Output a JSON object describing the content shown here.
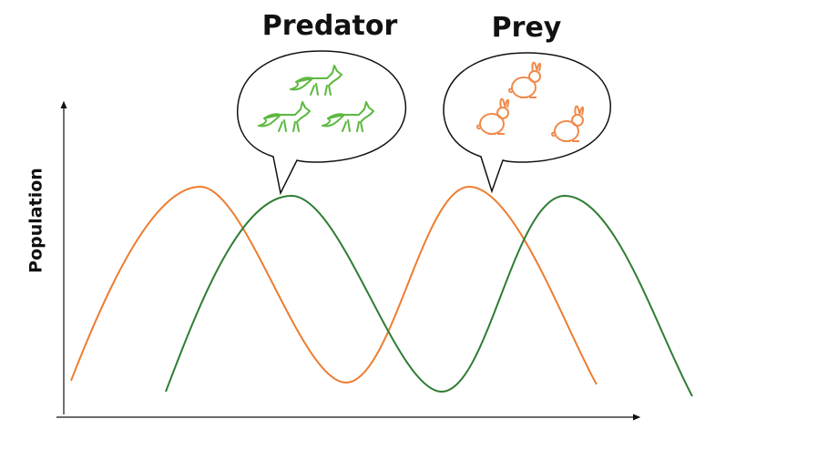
{
  "labels": {
    "predator": "Predator",
    "prey": "Prey",
    "y_axis": "Population"
  }
}
